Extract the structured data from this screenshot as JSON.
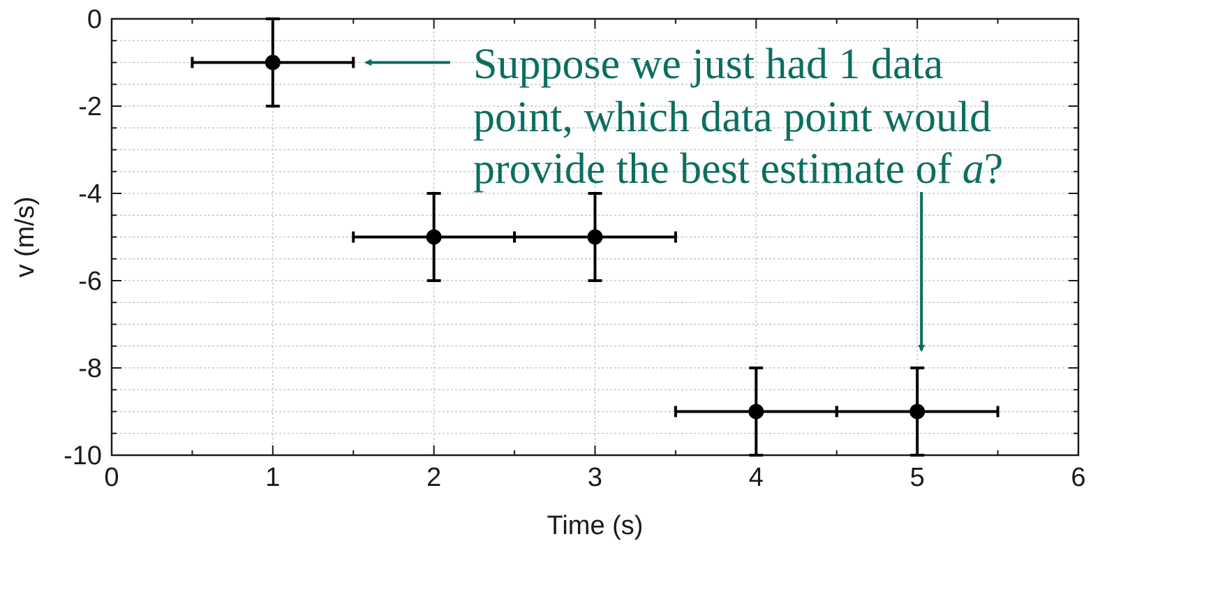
{
  "chart_data": {
    "type": "scatter",
    "title": "",
    "xlabel": "Time (s)",
    "ylabel": "v (m/s)",
    "xlim": [
      0,
      6
    ],
    "ylim": [
      -10,
      0
    ],
    "xticks": [
      0,
      1,
      2,
      3,
      4,
      5,
      6
    ],
    "yticks": [
      0,
      -2,
      -4,
      -6,
      -8,
      -10
    ],
    "xtick_labels": [
      "0",
      "1",
      "2",
      "3",
      "4",
      "5",
      "6"
    ],
    "ytick_labels": [
      "0",
      "-2",
      "-4",
      "-6",
      "-8",
      "-10"
    ],
    "grid": true,
    "series": [
      {
        "points": [
          {
            "x": 1,
            "y": -1,
            "xerr": 0.5,
            "yerr": 1
          },
          {
            "x": 2,
            "y": -5,
            "xerr": 0.5,
            "yerr": 1
          },
          {
            "x": 3,
            "y": -5,
            "xerr": 0.5,
            "yerr": 1
          },
          {
            "x": 4,
            "y": -9,
            "xerr": 0.5,
            "yerr": 1
          },
          {
            "x": 5,
            "y": -9,
            "xerr": 0.5,
            "yerr": 1
          }
        ]
      }
    ],
    "annotation": {
      "lines": [
        "Suppose we just had 1 data",
        "point, which data point would",
        "provide the best estimate of "
      ],
      "italic_symbol": "a",
      "trailing": "?",
      "arrow_targets": [
        {
          "x": 1.5,
          "y": -1
        },
        {
          "x": 5,
          "y": -7.6
        }
      ]
    },
    "colors": {
      "annotation": "#0b6e5f",
      "points": "#000000",
      "grid": "#bdbdbd"
    }
  }
}
